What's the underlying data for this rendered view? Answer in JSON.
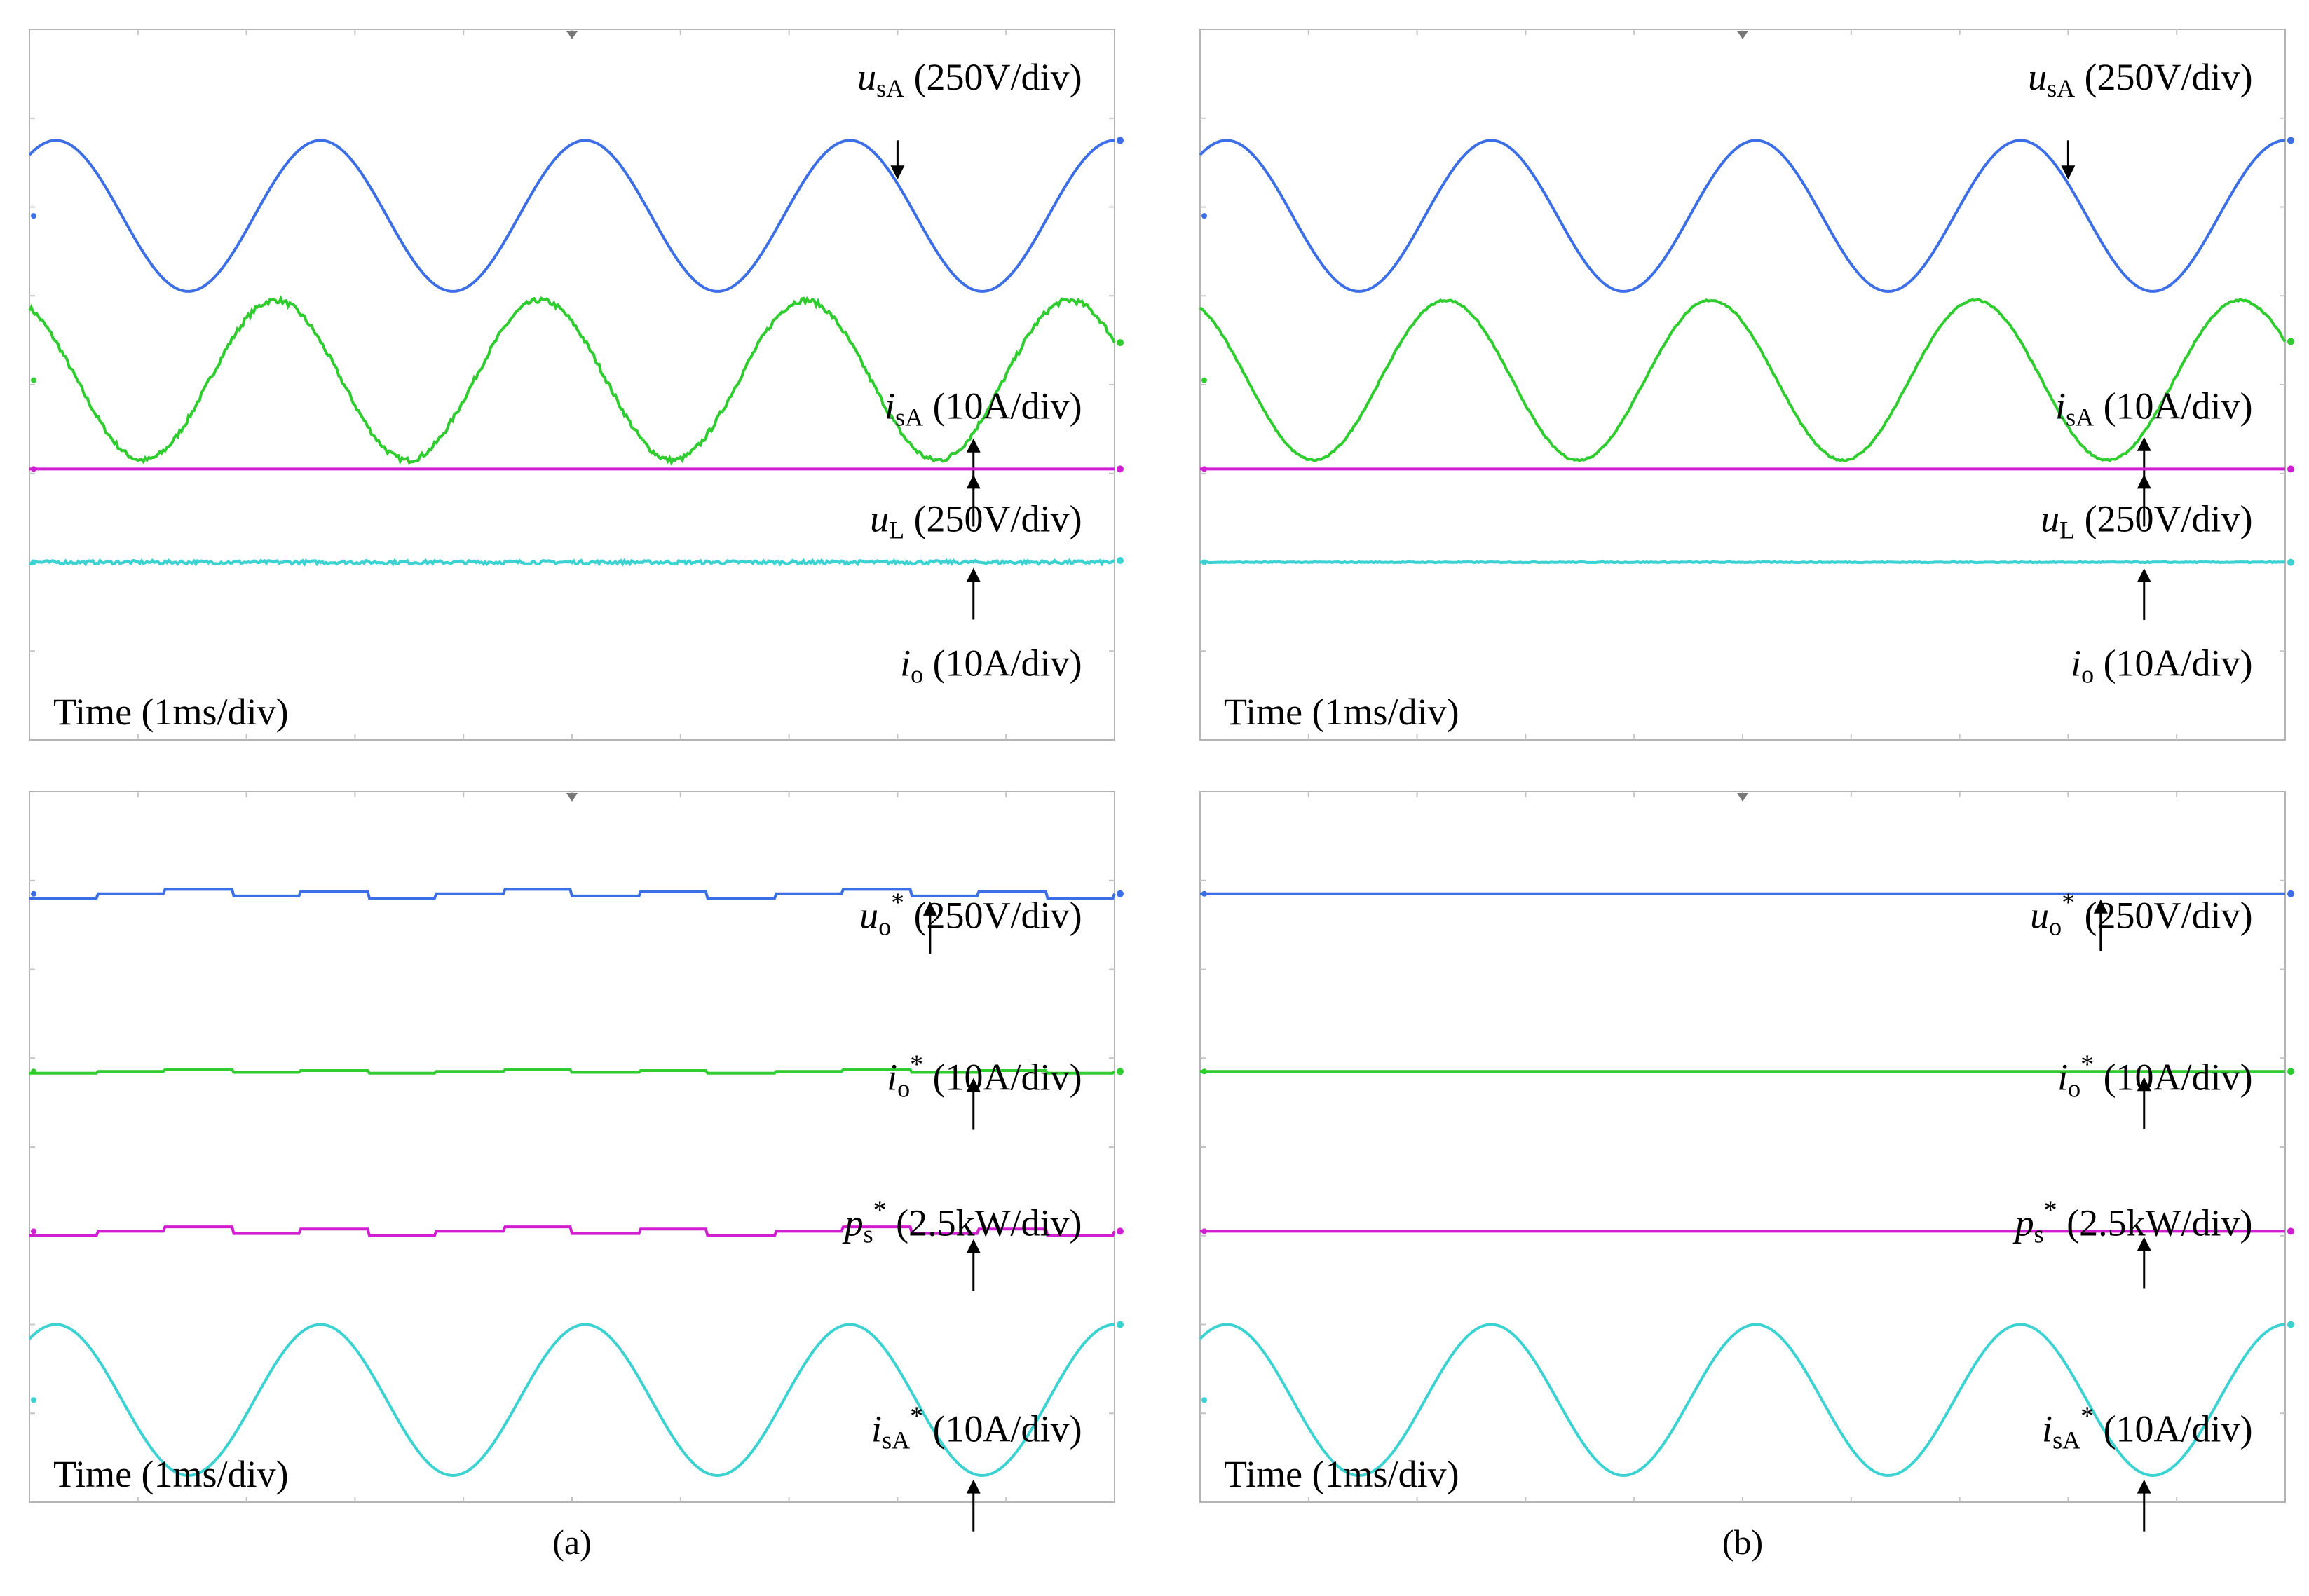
{
  "colors": {
    "blue": "#3c6ee6",
    "green": "#2fcc2f",
    "magenta": "#d21ed2",
    "cyan": "#3cd2d2",
    "frame": "#b4b4b4",
    "grid": "#c4c4c4"
  },
  "captions": [
    "(a)",
    "(b)"
  ],
  "time_label": "Time (1ms/div)",
  "chart_data": [
    {
      "type": "line",
      "panel": "a-top",
      "x": [
        0,
        1,
        2,
        3,
        4,
        5,
        6,
        7,
        8,
        9,
        10
      ],
      "xlabel": "Time (1ms/div)",
      "series": [
        {
          "name": "u_sA (250V/div)",
          "sym": "u",
          "sub": "sA",
          "sup": "",
          "unit": " (250V/div)",
          "color_key": "blue",
          "wave": "sine",
          "offset": 1.9,
          "amplitude": 0.85,
          "periods": 4.1,
          "phase": 0.15,
          "noise": 0
        },
        {
          "name": "i_sA (10A/div)",
          "sym": "i",
          "sub": "sA",
          "sup": "",
          "unit": " (10A/div)",
          "color_key": "green",
          "wave": "sine",
          "offset": 0.05,
          "amplitude": 0.9,
          "periods": 4.1,
          "phase": 0.32,
          "noise": 0.03
        },
        {
          "name": "u_L (250V/div)",
          "sym": "u",
          "sub": "L",
          "sup": "",
          "unit": " (250V/div)",
          "color_key": "magenta",
          "wave": "flat",
          "offset": -0.95,
          "amplitude": 0,
          "noise": 0
        },
        {
          "name": "i_o (10A/div)",
          "sym": "i",
          "sub": "o",
          "sup": "",
          "unit": " (10A/div)",
          "color_key": "cyan",
          "wave": "flat",
          "offset": -2.0,
          "amplitude": 0,
          "noise": 0.02
        }
      ]
    },
    {
      "type": "line",
      "panel": "b-top",
      "x": [
        0,
        1,
        2,
        3,
        4,
        5,
        6,
        7,
        8,
        9,
        10
      ],
      "xlabel": "Time (1ms/div)",
      "series": [
        {
          "name": "u_sA (250V/div)",
          "sym": "u",
          "sub": "sA",
          "sup": "",
          "unit": " (250V/div)",
          "color_key": "blue",
          "wave": "sine",
          "offset": 1.9,
          "amplitude": 0.85,
          "periods": 4.1,
          "phase": 0.15,
          "noise": 0
        },
        {
          "name": "i_sA (10A/div)",
          "sym": "i",
          "sub": "sA",
          "sup": "",
          "unit": " (10A/div)",
          "color_key": "green",
          "wave": "sine",
          "offset": 0.05,
          "amplitude": 0.9,
          "periods": 4.1,
          "phase": 0.32,
          "noise": 0.01
        },
        {
          "name": "u_L (250V/div)",
          "sym": "u",
          "sub": "L",
          "sup": "",
          "unit": " (250V/div)",
          "color_key": "magenta",
          "wave": "flat",
          "offset": -0.95,
          "amplitude": 0,
          "noise": 0
        },
        {
          "name": "i_o (10A/div)",
          "sym": "i",
          "sub": "o",
          "sup": "",
          "unit": " (10A/div)",
          "color_key": "cyan",
          "wave": "flat",
          "offset": -2.0,
          "amplitude": 0,
          "noise": 0.005
        }
      ]
    },
    {
      "type": "line",
      "panel": "a-bottom",
      "x": [
        0,
        1,
        2,
        3,
        4,
        5,
        6,
        7,
        8,
        9,
        10
      ],
      "xlabel": "Time (1ms/div)",
      "series": [
        {
          "name": "u_o* (250V/div)",
          "sym": "u",
          "sub": "o",
          "sup": "*",
          "unit": " (250V/div)",
          "color_key": "blue",
          "wave": "step",
          "offset": 2.85,
          "amplitude": 0.05,
          "periods": 4.1,
          "phase": 0.15,
          "noise": 0
        },
        {
          "name": "i_o* (10A/div)",
          "sym": "i",
          "sub": "o",
          "sup": "*",
          "unit": " (10A/div)",
          "color_key": "green",
          "wave": "step",
          "offset": 0.85,
          "amplitude": 0.02,
          "periods": 4.1,
          "phase": 0.15,
          "noise": 0
        },
        {
          "name": "p_s* (2.5kW/div)",
          "sym": "p",
          "sub": "s",
          "sup": "*",
          "unit": " (2.5kW/div)",
          "color_key": "magenta",
          "wave": "step",
          "offset": -0.95,
          "amplitude": 0.05,
          "periods": 4.1,
          "phase": 0.15,
          "noise": 0
        },
        {
          "name": "i_sA* (10A/div)",
          "sym": "i",
          "sub": "sA",
          "sup": "*",
          "unit": " (10A/div)",
          "color_key": "cyan",
          "wave": "sine",
          "offset": -2.85,
          "amplitude": 0.85,
          "periods": 4.1,
          "phase": 0.15,
          "noise": 0
        }
      ]
    },
    {
      "type": "line",
      "panel": "b-bottom",
      "x": [
        0,
        1,
        2,
        3,
        4,
        5,
        6,
        7,
        8,
        9,
        10
      ],
      "xlabel": "Time (1ms/div)",
      "series": [
        {
          "name": "u_o* (250V/div)",
          "sym": "u",
          "sub": "o",
          "sup": "*",
          "unit": " (250V/div)",
          "color_key": "blue",
          "wave": "flat",
          "offset": 2.85,
          "amplitude": 0,
          "noise": 0
        },
        {
          "name": "i_o* (10A/div)",
          "sym": "i",
          "sub": "o",
          "sup": "*",
          "unit": " (10A/div)",
          "color_key": "green",
          "wave": "flat",
          "offset": 0.85,
          "amplitude": 0,
          "noise": 0
        },
        {
          "name": "p_s* (2.5kW/div)",
          "sym": "p",
          "sub": "s",
          "sup": "*",
          "unit": " (2.5kW/div)",
          "color_key": "magenta",
          "wave": "flat",
          "offset": -0.95,
          "amplitude": 0,
          "noise": 0
        },
        {
          "name": "i_sA* (10A/div)",
          "sym": "i",
          "sub": "sA",
          "sup": "*",
          "unit": " (10A/div)",
          "color_key": "cyan",
          "wave": "sine",
          "offset": -2.85,
          "amplitude": 0.85,
          "periods": 4.1,
          "phase": 0.15,
          "noise": 0
        }
      ]
    }
  ]
}
